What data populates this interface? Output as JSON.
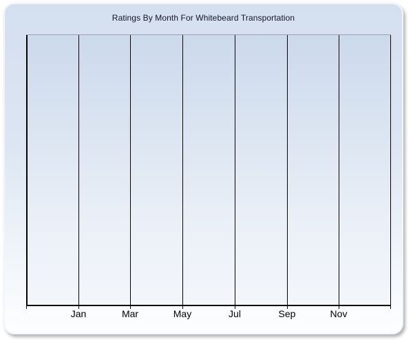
{
  "chart_data": {
    "type": "line",
    "title": "Ratings By Month For Whitebeard Transportation",
    "x_tick_labels": [
      "Jan",
      "Mar",
      "May",
      "Jul",
      "Sep",
      "Nov"
    ],
    "y_tick_labels": [],
    "series": [],
    "plot_is_empty": true,
    "grid": "vertical",
    "legend": "none"
  },
  "colors": {
    "panel_gradient_top": "#d4dff0",
    "panel_gradient_bottom": "#fdfeff",
    "plot_gradient_top": "#ccd9ec",
    "plot_gradient_bottom": "#f3f6fb",
    "plot_top_border": "#9aa2b2",
    "gridline": "#000000",
    "axis_line": "#000000",
    "title_color": "#14141f",
    "label_color": "#000000"
  }
}
